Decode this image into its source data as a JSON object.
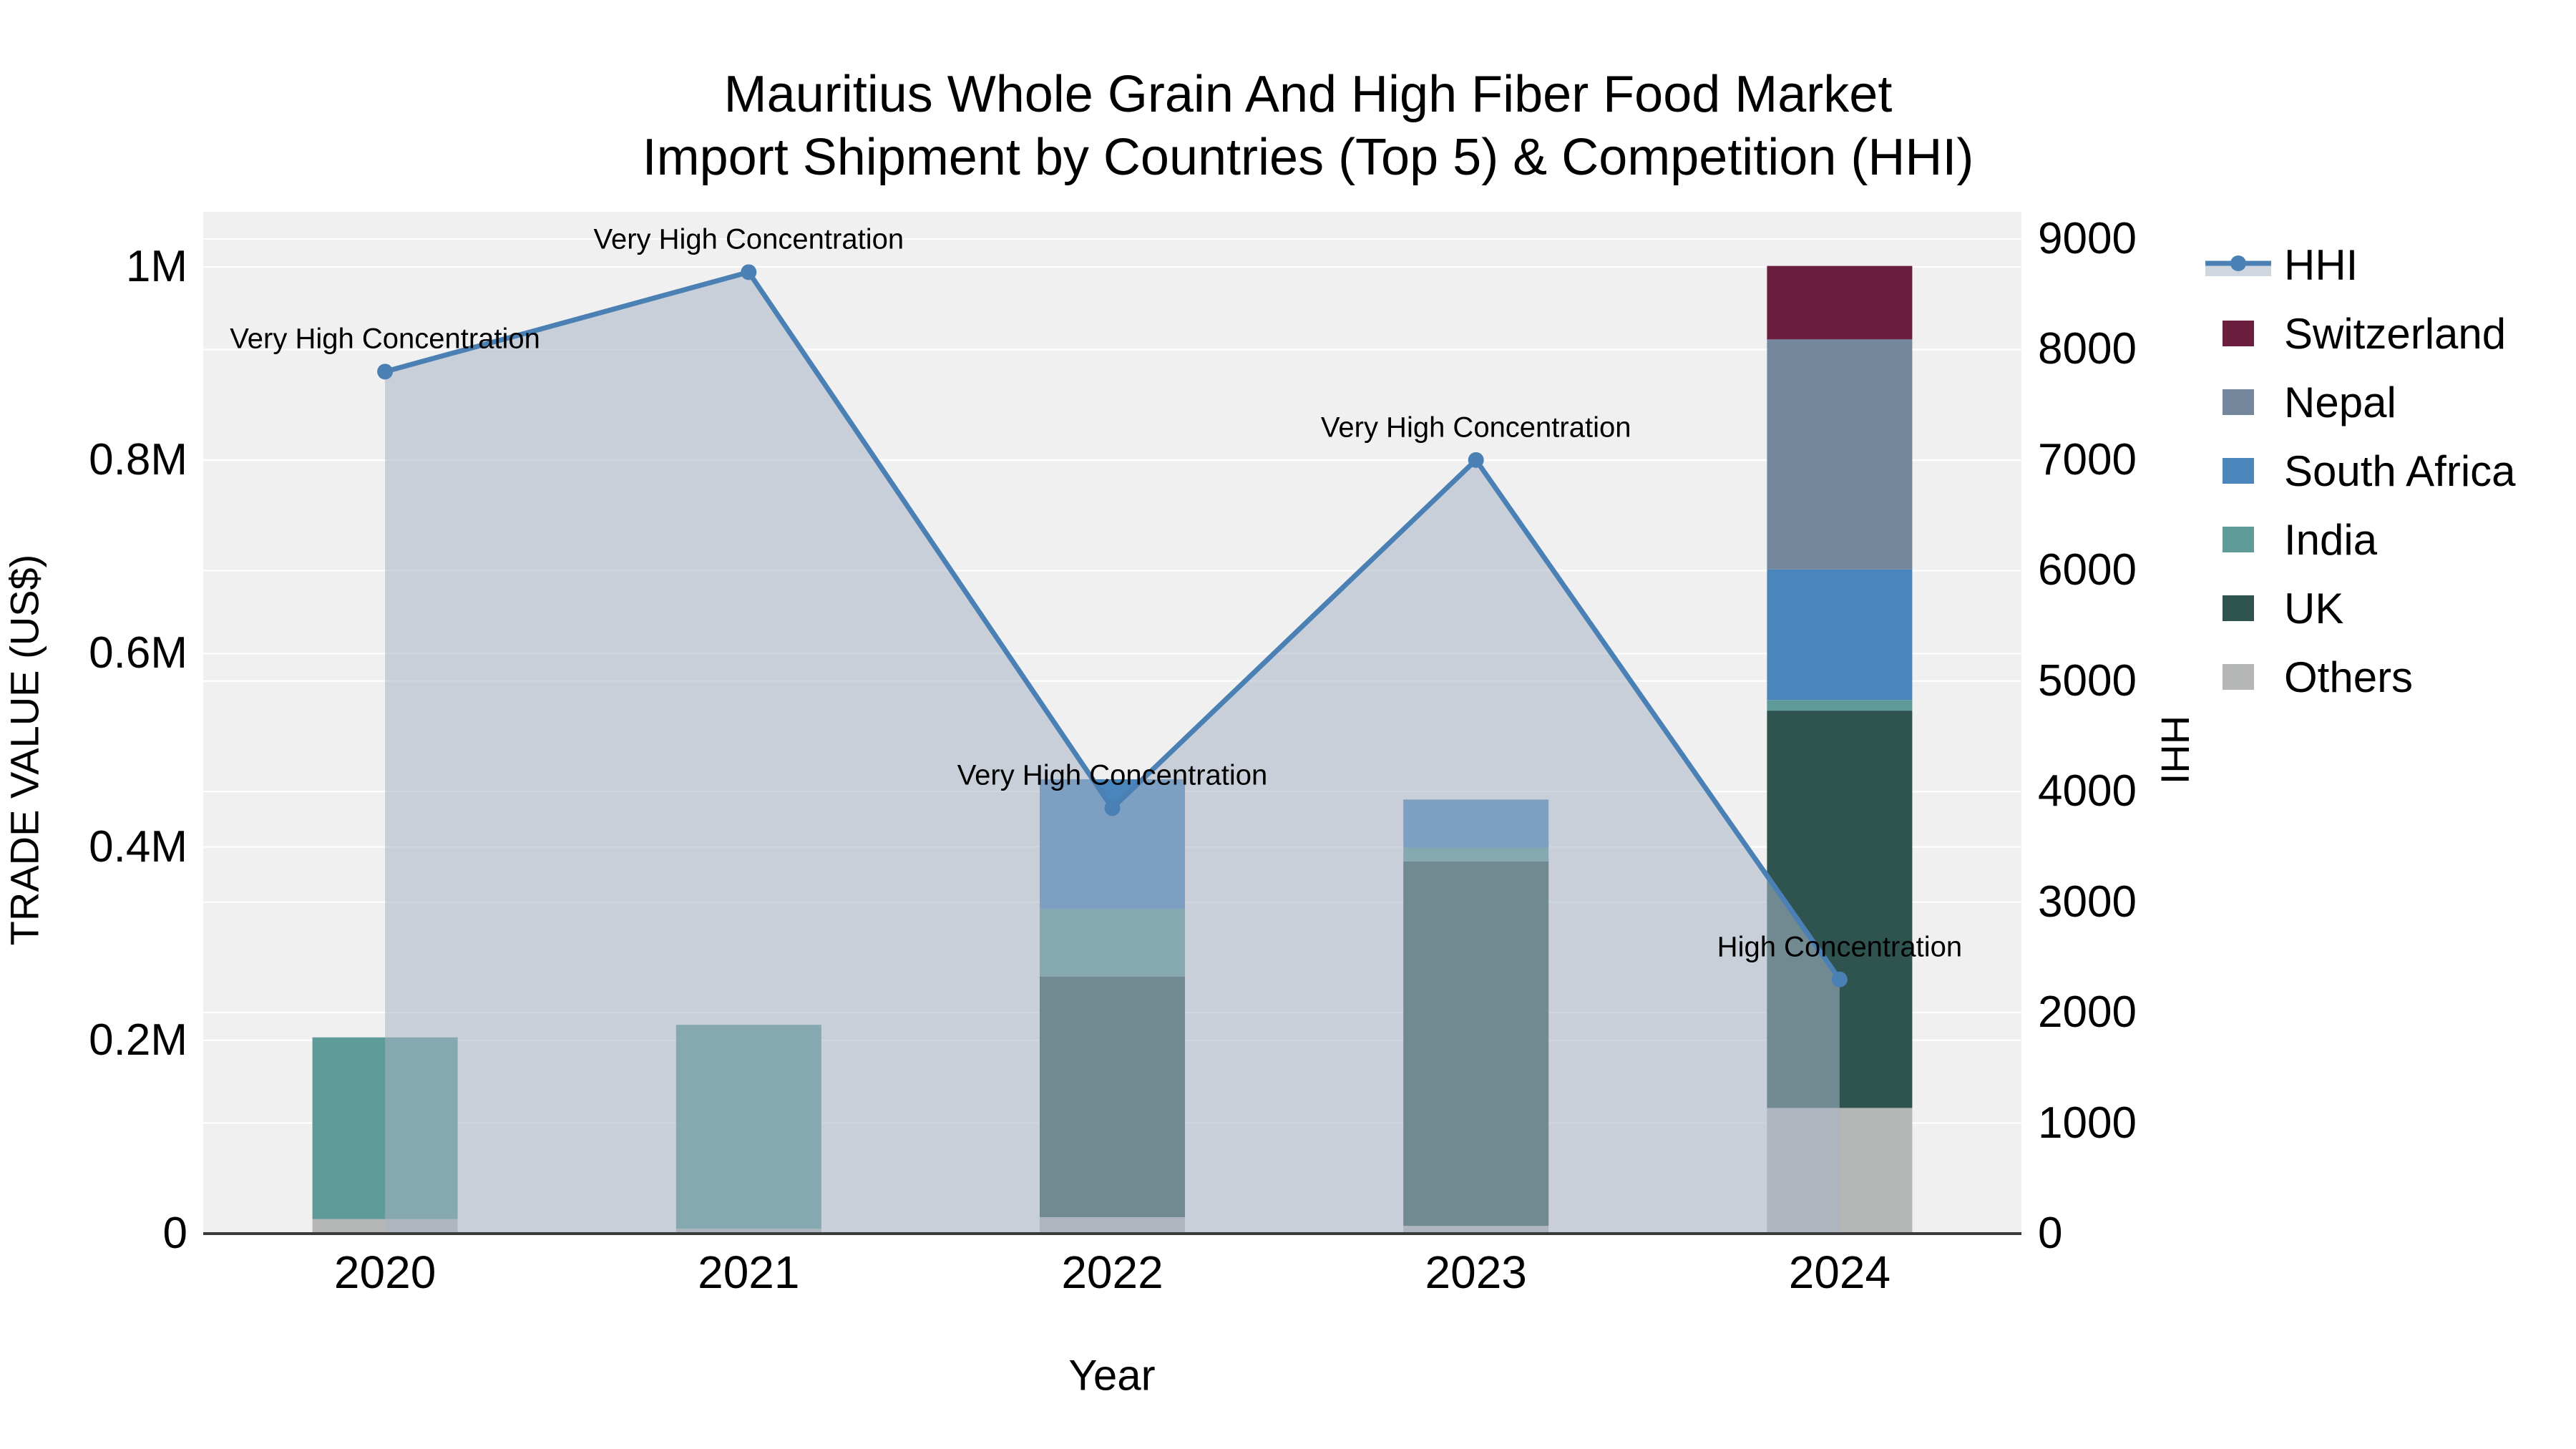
{
  "title": {
    "line1": "Mauritius Whole Grain And High Fiber Food Market",
    "line2": "Import Shipment by Countries (Top 5) & Competition (HHI)"
  },
  "axes": {
    "x": {
      "title": "Year",
      "categories": [
        "2020",
        "2021",
        "2022",
        "2023",
        "2024"
      ]
    },
    "y_left": {
      "title": "TRADE VALUE (US$)",
      "ticks": [
        "0",
        "0.2M",
        "0.4M",
        "0.6M",
        "0.8M",
        "1M"
      ],
      "tick_values": [
        0,
        0.2,
        0.4,
        0.6,
        0.8,
        1.0
      ],
      "range": [
        0,
        1.0
      ]
    },
    "y_right": {
      "title": "HHI",
      "ticks": [
        "0",
        "1000",
        "2000",
        "3000",
        "4000",
        "5000",
        "6000",
        "7000",
        "8000",
        "9000"
      ],
      "tick_values": [
        0,
        1000,
        2000,
        3000,
        4000,
        5000,
        6000,
        7000,
        8000,
        9000
      ],
      "range": [
        0,
        9000
      ]
    }
  },
  "legend": [
    {
      "label": "HHI",
      "type": "line",
      "color": "#4A80B4"
    },
    {
      "label": "Switzerland",
      "type": "bar",
      "color": "#6B1E3E"
    },
    {
      "label": "Nepal",
      "type": "bar",
      "color": "#74879C"
    },
    {
      "label": "South Africa",
      "type": "bar",
      "color": "#4A86BC"
    },
    {
      "label": "India",
      "type": "bar",
      "color": "#5D9A98"
    },
    {
      "label": "UK",
      "type": "bar",
      "color": "#2F5450"
    },
    {
      "label": "Others",
      "type": "bar",
      "color": "#B5B7B6"
    }
  ],
  "chart_data": {
    "type": "bar",
    "subtype": "stacked-bars-with-line",
    "unit_left": "Million US$",
    "unit_right": "HHI index",
    "categories": [
      "2020",
      "2021",
      "2022",
      "2023",
      "2024"
    ],
    "bar_series_bottom_to_top": [
      {
        "name": "Others",
        "color": "#B5B7B6",
        "values": [
          0.015,
          0.005,
          0.017,
          0.008,
          0.13
        ]
      },
      {
        "name": "UK",
        "color": "#2F5450",
        "values": [
          0,
          0,
          0.249,
          0.377,
          0.411
        ]
      },
      {
        "name": "India",
        "color": "#5D9A98",
        "values": [
          0.188,
          0.211,
          0.07,
          0.014,
          0.011
        ]
      },
      {
        "name": "South Africa",
        "color": "#4A86BC",
        "values": [
          0,
          0,
          0.134,
          0.05,
          0.135
        ]
      },
      {
        "name": "Nepal",
        "color": "#74879C",
        "values": [
          0,
          0,
          0,
          0,
          0.238
        ]
      },
      {
        "name": "Switzerland",
        "color": "#6B1E3E",
        "values": [
          0,
          0,
          0,
          0,
          0.076
        ]
      }
    ],
    "bar_totals": [
      0.203,
      0.216,
      0.47,
      0.449,
      1.001
    ],
    "line_series": {
      "name": "HHI",
      "axis": "right",
      "color": "#4A80B4",
      "fill": "rgba(167,180,198,0.55)",
      "values": [
        7800,
        8700,
        3850,
        7000,
        2300
      ]
    },
    "annotations": [
      {
        "category": "2020",
        "text": "Very High Concentration"
      },
      {
        "category": "2021",
        "text": "Very High Concentration"
      },
      {
        "category": "2022",
        "text": "Very High Concentration"
      },
      {
        "category": "2023",
        "text": "Very High Concentration"
      },
      {
        "category": "2024",
        "text": "High Concentration"
      }
    ],
    "grid": true,
    "legend_position": "right"
  },
  "colors": {
    "plot_bg": "#f0f0f0",
    "grid": "#ffffff",
    "axis_line": "#3a3a3a",
    "text": "#000000"
  }
}
